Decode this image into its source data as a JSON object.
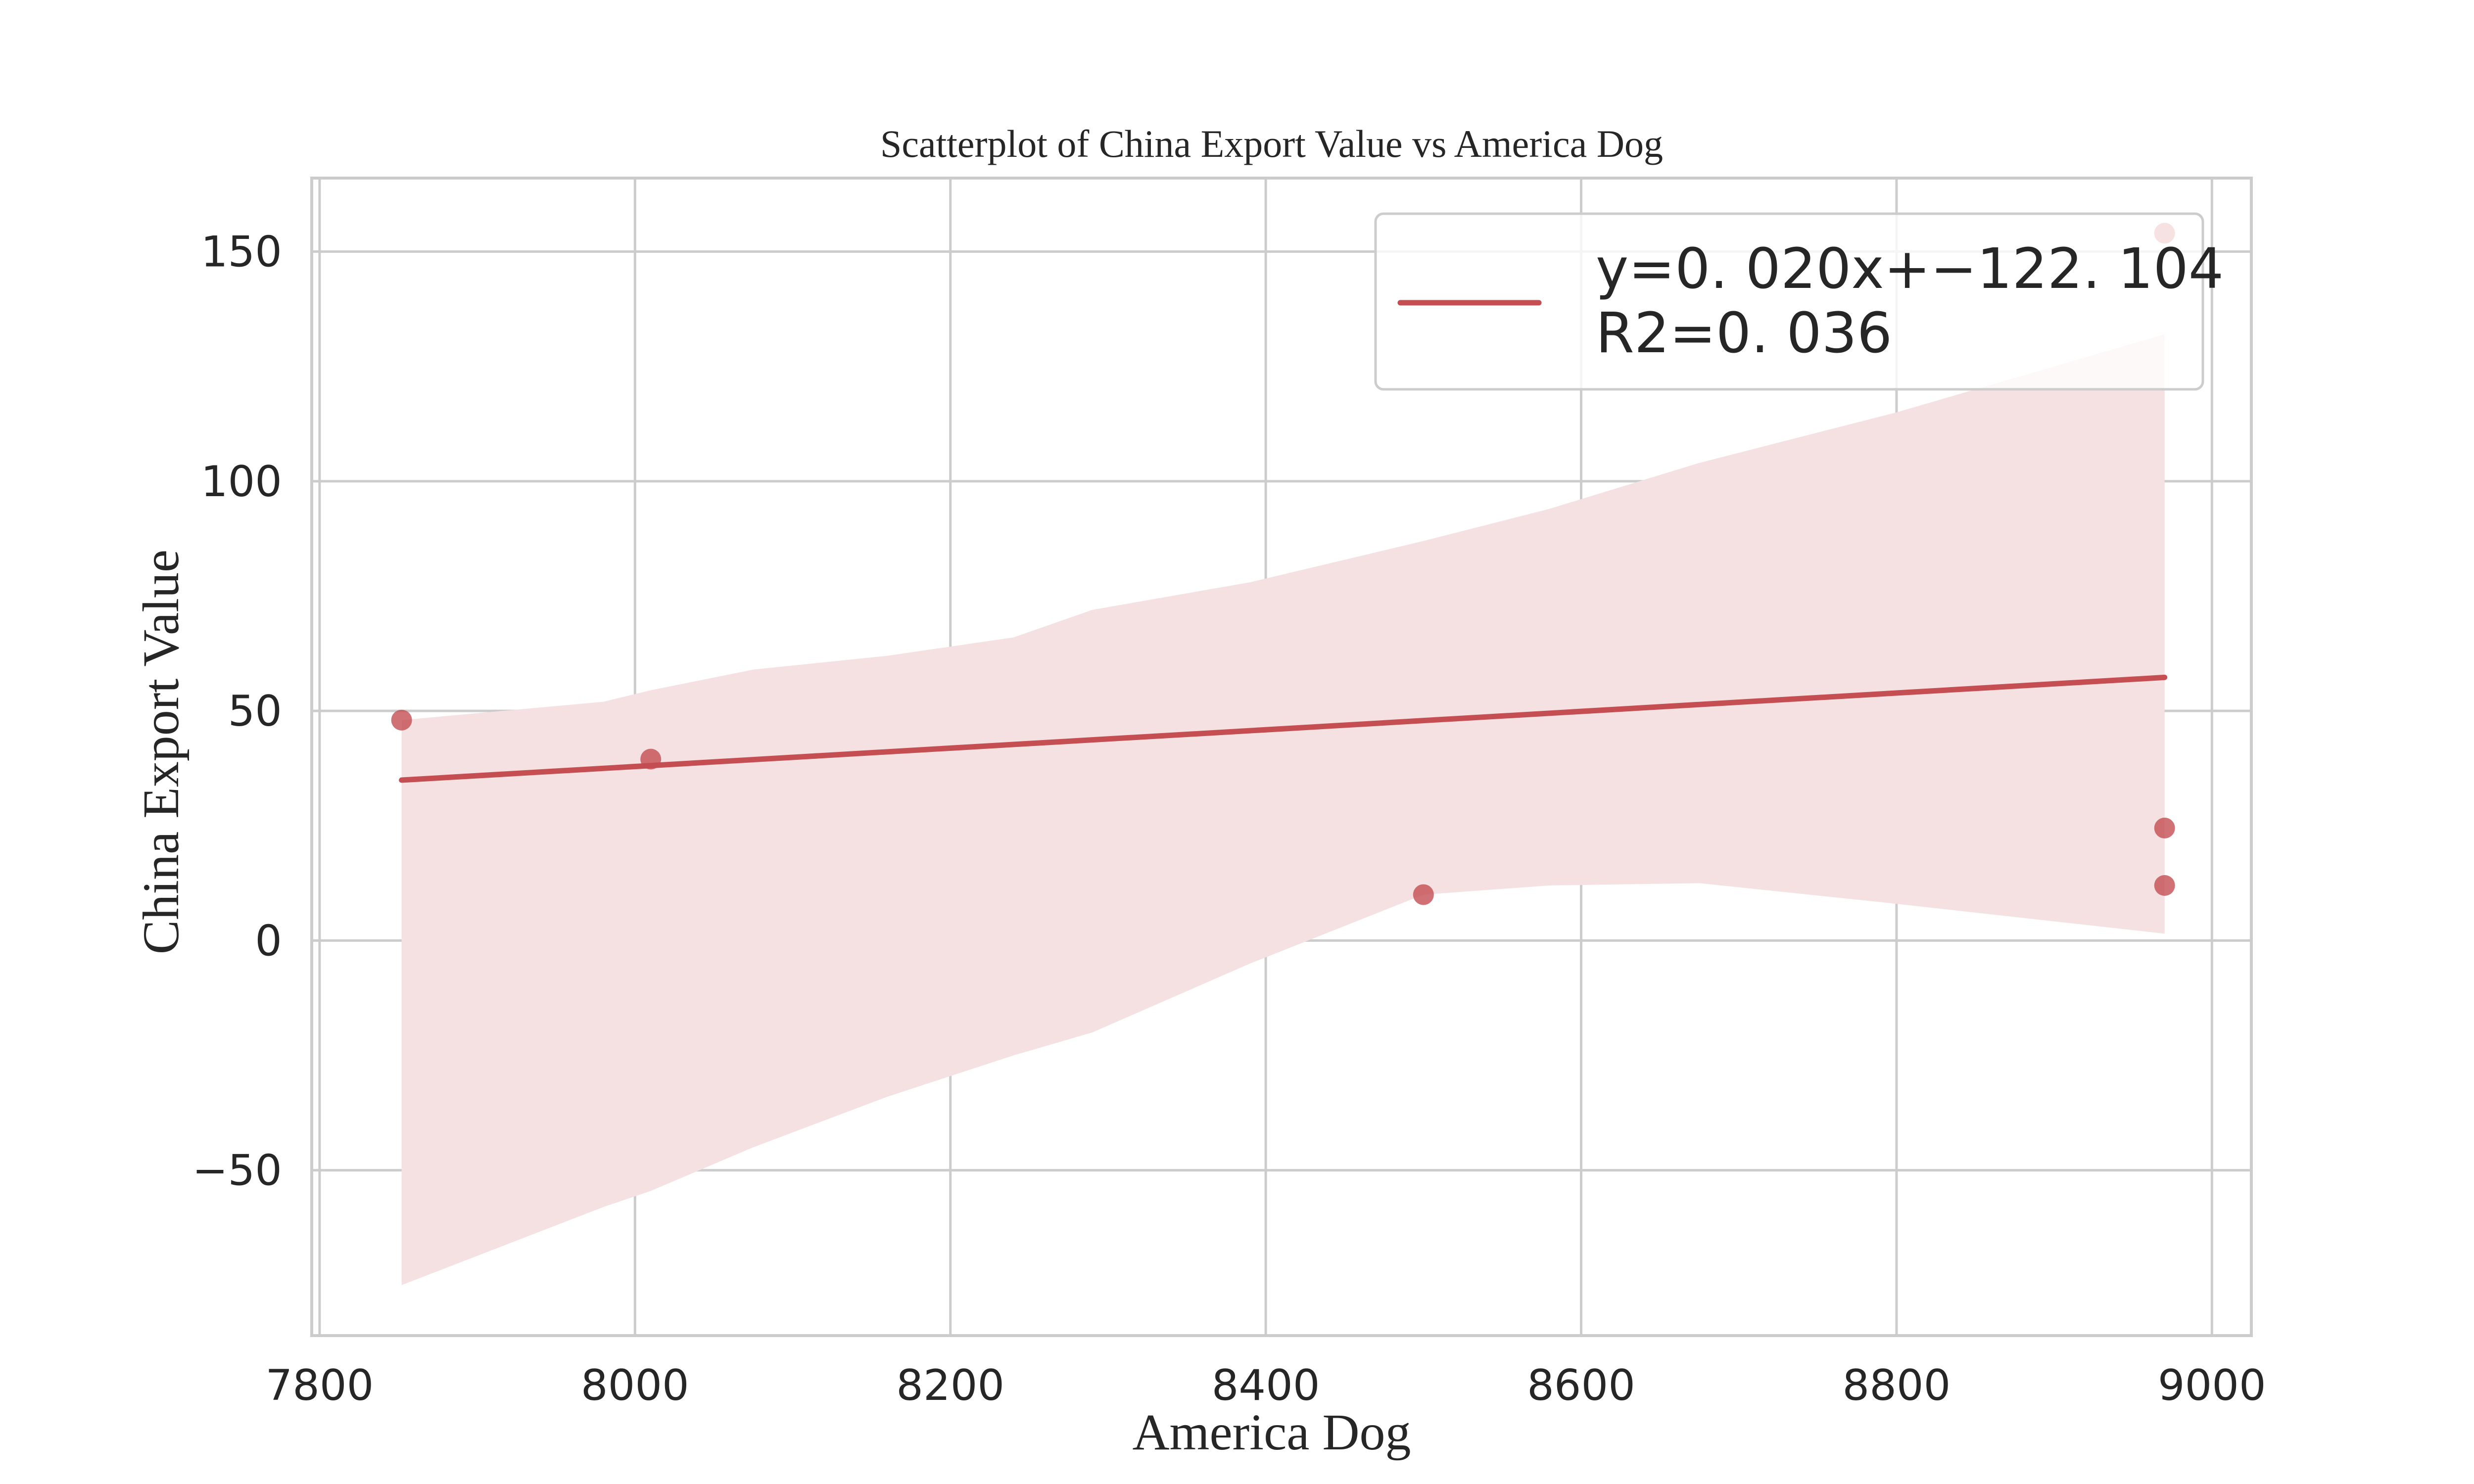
{
  "chart_data": {
    "type": "scatter",
    "title": "Scatterplot of China Export Value vs America Dog",
    "xlabel": "America Dog",
    "ylabel": "China Export Value",
    "xlim": [
      7795,
      9025
    ],
    "ylim": [
      -86,
      166
    ],
    "x_ticks": [
      7800,
      8000,
      8200,
      8400,
      8600,
      8800,
      9000
    ],
    "y_ticks": [
      -50,
      0,
      50,
      100,
      150
    ],
    "x_tick_labels": [
      "7800",
      "8000",
      "8200",
      "8400",
      "8600",
      "8800",
      "9000"
    ],
    "y_tick_labels": [
      "−50",
      "0",
      "50",
      "100",
      "150"
    ],
    "grid": true,
    "legend": {
      "position": "top-right",
      "entries": [
        "y=0. 020x+−122. 104",
        "R2=0. 036"
      ]
    },
    "points": [
      {
        "x": 7852,
        "y": 48
      },
      {
        "x": 8010,
        "y": 39.5
      },
      {
        "x": 8500,
        "y": 10
      },
      {
        "x": 8970,
        "y": 154
      },
      {
        "x": 8970,
        "y": 24.5
      },
      {
        "x": 8970,
        "y": 12
      }
    ],
    "fit_line": {
      "slope": 0.02,
      "intercept": -122.104,
      "r2": 0.036,
      "x_range": [
        7852,
        8970
      ]
    },
    "confidence_band": {
      "x": [
        7852,
        7980,
        8010,
        8075,
        8160,
        8240,
        8290,
        8390,
        8500,
        8580,
        8675,
        8800,
        8970
      ],
      "upper": [
        48,
        52,
        54.5,
        59,
        62,
        66,
        72,
        78,
        87,
        94,
        104,
        115,
        132
      ],
      "lower": [
        -75,
        -58,
        -54.5,
        -45,
        -34,
        -25,
        -20,
        -5,
        10,
        12,
        12.5,
        8,
        1.5
      ]
    },
    "colors": {
      "point": "#c44e52",
      "line": "#c44e52",
      "band": "#f5e1e2",
      "grid": "#cccccc",
      "text": "#262626"
    }
  }
}
